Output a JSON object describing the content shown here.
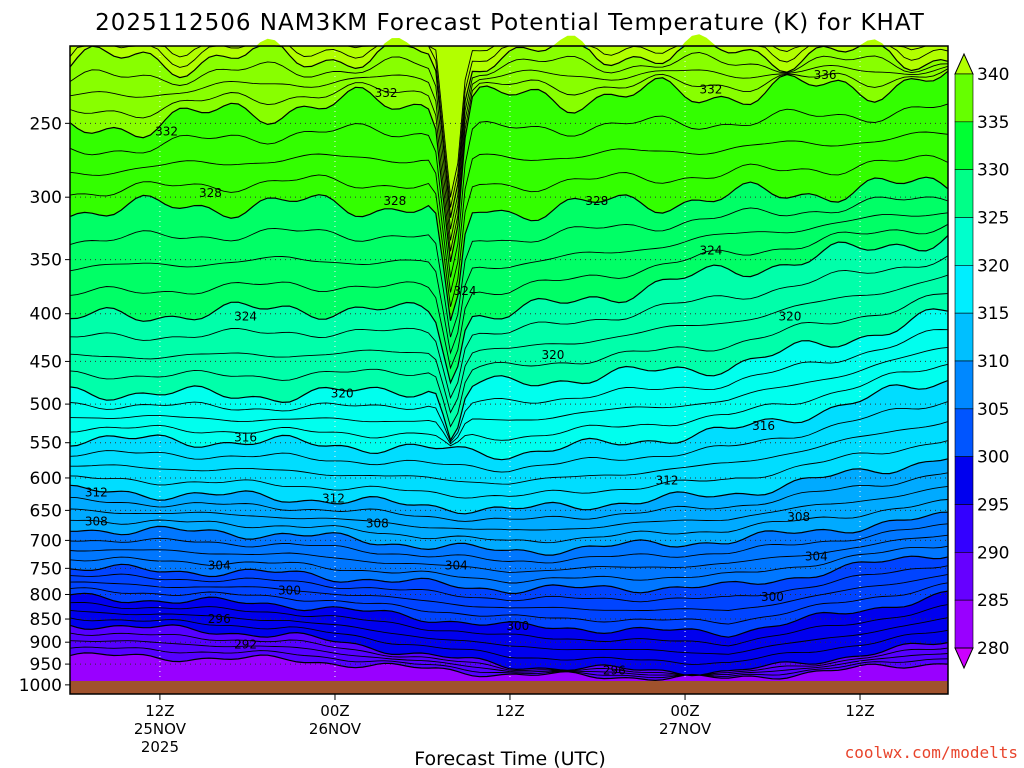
{
  "chart_data": {
    "type": "heatmap",
    "title": "2025112506 NAM3KM Forecast Potential Temperature (K) for KHAT",
    "xlabel": "Forecast Time (UTC)",
    "ylabel": "",
    "y_scale": "log-pressure",
    "y_axis_ticks": [
      "250",
      "300",
      "350",
      "400",
      "450",
      "500",
      "550",
      "600",
      "650",
      "700",
      "750",
      "800",
      "850",
      "900",
      "950",
      "1000"
    ],
    "x_axis_ticks": [
      {
        "line1": "12Z",
        "line2": "25NOV",
        "line3": "2025"
      },
      {
        "line1": "00Z",
        "line2": "26NOV",
        "line3": ""
      },
      {
        "line1": "12Z",
        "line2": "",
        "line3": ""
      },
      {
        "line1": "00Z",
        "line2": "27NOV",
        "line3": ""
      },
      {
        "line1": "12Z",
        "line2": "",
        "line3": ""
      }
    ],
    "colorbar": {
      "labels": [
        "340",
        "335",
        "330",
        "325",
        "320",
        "315",
        "310",
        "305",
        "300",
        "295",
        "290",
        "285",
        "280"
      ],
      "colors": [
        "#b2ff00",
        "#66ff00",
        "#00ff33",
        "#00ff88",
        "#00ffcc",
        "#00eeff",
        "#00bfff",
        "#0088ff",
        "#0055ff",
        "#0000ee",
        "#3300ff",
        "#6600ff",
        "#9900ff",
        "#cc00ff"
      ]
    },
    "contour_labels": [
      {
        "text": "336",
        "p": 222,
        "t": 0.86
      },
      {
        "text": "332",
        "p": 232,
        "t": 0.36
      },
      {
        "text": "332",
        "p": 255,
        "t": 0.11
      },
      {
        "text": "332",
        "p": 230,
        "t": 0.73
      },
      {
        "text": "328",
        "p": 297,
        "t": 0.16
      },
      {
        "text": "328",
        "p": 303,
        "t": 0.37
      },
      {
        "text": "328",
        "p": 303,
        "t": 0.6
      },
      {
        "text": "324",
        "p": 342,
        "t": 0.73
      },
      {
        "text": "324",
        "p": 378,
        "t": 0.45
      },
      {
        "text": "324",
        "p": 403,
        "t": 0.2
      },
      {
        "text": "320",
        "p": 403,
        "t": 0.82
      },
      {
        "text": "320",
        "p": 443,
        "t": 0.55
      },
      {
        "text": "320",
        "p": 487,
        "t": 0.31
      },
      {
        "text": "316",
        "p": 543,
        "t": 0.2
      },
      {
        "text": "316",
        "p": 528,
        "t": 0.79
      },
      {
        "text": "312",
        "p": 604,
        "t": 0.68
      },
      {
        "text": "312",
        "p": 622,
        "t": 0.03
      },
      {
        "text": "312",
        "p": 631,
        "t": 0.3
      },
      {
        "text": "308",
        "p": 668,
        "t": 0.03
      },
      {
        "text": "308",
        "p": 671,
        "t": 0.35
      },
      {
        "text": "308",
        "p": 661,
        "t": 0.83
      },
      {
        "text": "304",
        "p": 745,
        "t": 0.17
      },
      {
        "text": "304",
        "p": 745,
        "t": 0.44
      },
      {
        "text": "304",
        "p": 728,
        "t": 0.85
      },
      {
        "text": "300",
        "p": 792,
        "t": 0.25
      },
      {
        "text": "300",
        "p": 865,
        "t": 0.51
      },
      {
        "text": "300",
        "p": 805,
        "t": 0.8
      },
      {
        "text": "296",
        "p": 850,
        "t": 0.17
      },
      {
        "text": "296",
        "p": 965,
        "t": 0.62
      },
      {
        "text": "292",
        "p": 905,
        "t": 0.2
      }
    ]
  },
  "credit": "coolwx.com/modelts"
}
